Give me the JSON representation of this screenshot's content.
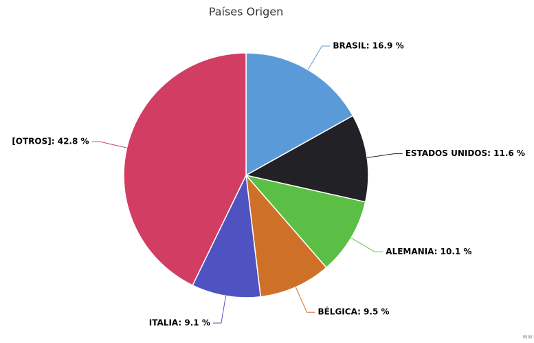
{
  "chart_data": {
    "type": "pie",
    "title": "Países Origen",
    "values": [
      16.9,
      11.6,
      10.1,
      9.5,
      9.1,
      42.8
    ],
    "value_labels": [
      "BRASIL: 16.9 %",
      "ESTADOS UNIDOS: 11.6 %",
      "ALEMANIA: 10.1 %",
      "BÉLGICA: 9.5 %",
      "ITALIA: 9.1 %",
      "[OTROS]: 42.8 %"
    ],
    "colors": [
      "#5b9ad8",
      "#222226",
      "#5cbf45",
      "#cf7028",
      "#4f53c2",
      "#d23d63"
    ],
    "watermark": "ww"
  }
}
